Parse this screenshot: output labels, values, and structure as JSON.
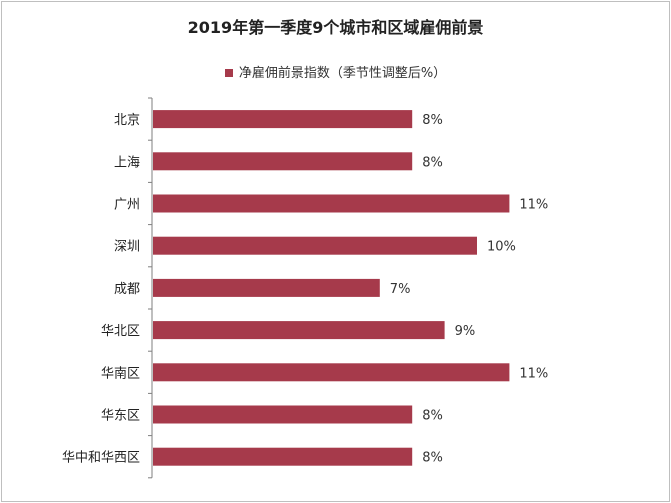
{
  "chart_data": {
    "type": "bar",
    "orientation": "horizontal",
    "title": "2019年第一季度9个城市和区域雇佣前景",
    "legend": [
      "净雇佣前景指数（季节性调整后%）"
    ],
    "categories": [
      "北京",
      "上海",
      "广州",
      "深圳",
      "成都",
      "华北区",
      "华南区",
      "华东区",
      "华中和华西区"
    ],
    "values": [
      8,
      8,
      11,
      10,
      7,
      9,
      11,
      8,
      8
    ],
    "value_labels": [
      "8%",
      "8%",
      "11%",
      "10%",
      "7%",
      "9%",
      "11%",
      "8%",
      "8%"
    ],
    "xlim": [
      0,
      12
    ],
    "grid": false,
    "bar_color": "#a63a4b"
  }
}
